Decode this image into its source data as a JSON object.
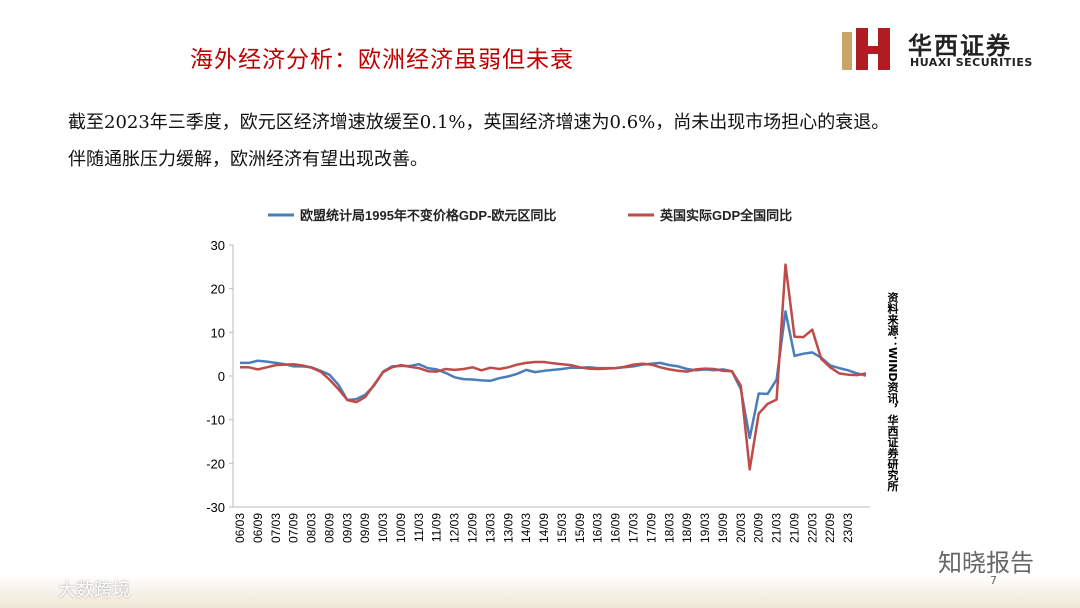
{
  "header": {
    "title": "海外经济分析：欧洲经济虽弱但未衰",
    "logo_name": "华西证券",
    "logo_en": "HUAXI SECURITIES"
  },
  "body": [
    "截至2023年三季度，欧元区经济增速放缓至0.1%，英国经济增速为0.6%，尚未出现市场担心的衰退。",
    "伴随通胀压力缓解，欧洲经济有望出现改善。"
  ],
  "chart_data": {
    "type": "line",
    "categories": [
      "06/03",
      null,
      "06/09",
      null,
      "07/03",
      null,
      "07/09",
      null,
      "08/03",
      null,
      "08/09",
      null,
      "09/03",
      null,
      "09/09",
      null,
      "10/03",
      null,
      "10/09",
      null,
      "11/03",
      null,
      "11/09",
      null,
      "12/03",
      null,
      "12/09",
      null,
      "13/03",
      null,
      "13/09",
      null,
      "14/03",
      null,
      "14/09",
      null,
      "15/03",
      null,
      "15/09",
      null,
      "16/03",
      null,
      "16/09",
      null,
      "17/03",
      null,
      "17/09",
      null,
      "18/03",
      null,
      "18/09",
      null,
      "19/03",
      null,
      "19/09",
      null,
      "20/03",
      null,
      "20/09",
      null,
      "21/03",
      null,
      "21/09",
      null,
      "22/03",
      null,
      "22/09",
      null,
      "23/03",
      null,
      null
    ],
    "series": [
      {
        "name": "欧盟统计局1995年不变价格GDP-欧元区同比",
        "color": "#4a7ebb",
        "values": [
          3.0,
          3.0,
          3.5,
          3.3,
          3.0,
          2.7,
          2.2,
          2.2,
          2.0,
          1.2,
          0.3,
          -2.0,
          -5.5,
          -5.3,
          -4.3,
          -2.2,
          1.0,
          2.2,
          2.3,
          2.3,
          2.7,
          1.8,
          1.5,
          0.7,
          -0.3,
          -0.7,
          -0.8,
          -1.0,
          -1.1,
          -0.5,
          -0.1,
          0.5,
          1.4,
          0.9,
          1.2,
          1.4,
          1.6,
          1.9,
          1.9,
          2.0,
          1.8,
          1.8,
          1.8,
          2.0,
          2.2,
          2.6,
          2.8,
          3.0,
          2.5,
          2.2,
          1.6,
          1.3,
          1.5,
          1.3,
          1.5,
          1.1,
          -3.0,
          -14.2,
          -4.0,
          -4.1,
          -0.8,
          14.8,
          4.6,
          5.1,
          5.4,
          4.2,
          2.4,
          1.8,
          1.3,
          0.6,
          0.1
        ]
      },
      {
        "name": "英国实际GDP全国同比",
        "color": "#be4b48",
        "values": [
          2.0,
          2.0,
          1.5,
          2.0,
          2.5,
          2.6,
          2.7,
          2.4,
          1.9,
          1.0,
          -0.8,
          -3.0,
          -5.5,
          -6.0,
          -4.8,
          -2.0,
          0.9,
          2.0,
          2.5,
          2.1,
          1.8,
          1.1,
          1.0,
          1.6,
          1.4,
          1.6,
          2.0,
          1.3,
          1.9,
          1.6,
          2.0,
          2.6,
          3.0,
          3.2,
          3.2,
          2.9,
          2.7,
          2.5,
          2.0,
          1.7,
          1.6,
          1.7,
          1.8,
          2.1,
          2.6,
          2.8,
          2.6,
          2.0,
          1.5,
          1.2,
          1.0,
          1.5,
          1.7,
          1.6,
          1.2,
          1.1,
          -2.2,
          -21.4,
          -8.6,
          -6.4,
          -5.4,
          25.5,
          9.0,
          8.9,
          10.6,
          3.9,
          2.0,
          0.6,
          0.3,
          0.2,
          0.6
        ]
      }
    ],
    "ylim": [
      -30,
      30
    ],
    "yticks": [
      30,
      20,
      10,
      0,
      -10,
      -20,
      -30
    ],
    "legend": "top",
    "source": "资料来源：WIND资讯，华西证券研究所"
  },
  "footer": {
    "page": "7",
    "watermark": "知晓报告",
    "watermark2": "大数跨境"
  }
}
